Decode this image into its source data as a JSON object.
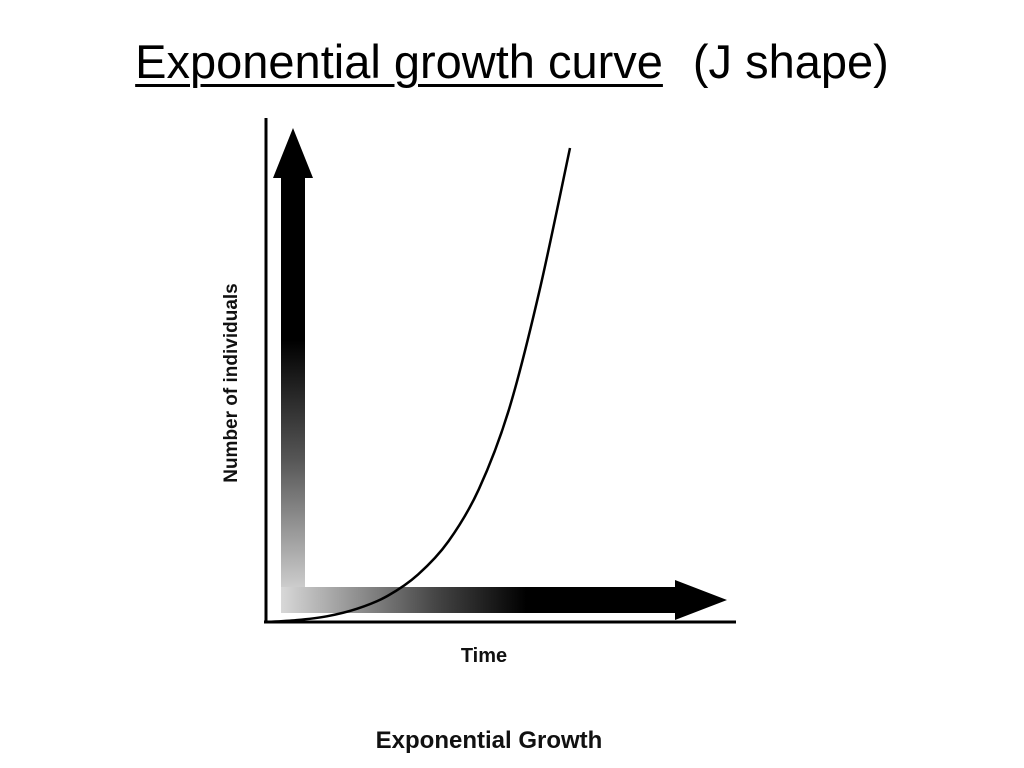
{
  "slide": {
    "title_main": "Exponential growth curve",
    "title_suffix": "(J shape)"
  },
  "chart_data": {
    "type": "line",
    "title": "Exponential Growth",
    "xlabel": "Time",
    "ylabel": "Number of individuals",
    "x_ticks": [],
    "y_ticks": [],
    "xlim": [
      0,
      1
    ],
    "ylim": [
      0,
      1
    ],
    "grid": false,
    "legend": "none",
    "series": [
      {
        "name": "",
        "color": "#000000",
        "x": [
          0,
          0.1,
          0.2,
          0.3,
          0.4,
          0.5,
          0.6,
          0.7,
          0.8,
          0.9,
          1.0
        ],
        "y": [
          0,
          0.004,
          0.012,
          0.028,
          0.055,
          0.1,
          0.17,
          0.28,
          0.45,
          0.7,
          1.0
        ]
      }
    ],
    "colors": {
      "axis": "#000000",
      "arrow": "#000000",
      "arrow_fade": "#d8d8d8"
    }
  }
}
